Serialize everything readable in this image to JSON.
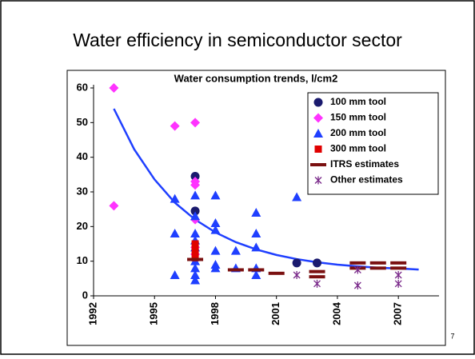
{
  "slide_title": "Water efficiency in semiconductor sector",
  "page_number": "7",
  "chart_data": {
    "type": "scatter",
    "title": "Water consumption trends, l/cm2",
    "xlim": [
      1992,
      2009
    ],
    "xticks": [
      1992,
      1995,
      1998,
      2001,
      2004,
      2007
    ],
    "ylim": [
      0,
      60
    ],
    "yticks": [
      0,
      10,
      20,
      30,
      40,
      50,
      60
    ],
    "legend": "upper right",
    "series": [
      {
        "name": "100 mm tool",
        "color": "#1a1a6e",
        "marker": "circle",
        "x": [
          1997,
          1997,
          2002,
          2003
        ],
        "values": [
          34.5,
          24.5,
          9.5,
          9.5
        ]
      },
      {
        "name": "150 mm tool",
        "color": "#ff33ff",
        "marker": "diamond",
        "x": [
          1993,
          1993,
          1996,
          1997,
          1997,
          1997,
          1997,
          1997,
          1997
        ],
        "values": [
          60,
          26,
          49,
          50,
          33,
          32,
          22,
          14,
          12
        ]
      },
      {
        "name": "200 mm tool",
        "color": "#1f3fff",
        "marker": "triangle",
        "x": [
          1996,
          1996,
          1996,
          1997,
          1997,
          1997,
          1997,
          1997,
          1997,
          1997,
          1997,
          1997,
          1998,
          1998,
          1998,
          1998,
          1998,
          1998,
          1999,
          1999,
          2000,
          2000,
          2000,
          2000,
          2000,
          2002
        ],
        "values": [
          28,
          18,
          6,
          29,
          23,
          18,
          16,
          14,
          10,
          8,
          6,
          4.5,
          29,
          21,
          19,
          13,
          9,
          8,
          13,
          8,
          24,
          18,
          14,
          8,
          6,
          28.5
        ]
      },
      {
        "name": "300 mm tool",
        "color": "#e00000",
        "marker": "square",
        "x": [
          1997,
          1997,
          1997
        ],
        "values": [
          11,
          15,
          13
        ]
      },
      {
        "name": "ITRS estimates",
        "color": "#7a1010",
        "marker": "dash",
        "x": [
          1997,
          1999,
          2000,
          2001,
          2003,
          2003,
          2005,
          2005,
          2006,
          2006,
          2007,
          2007
        ],
        "values": [
          10.5,
          7.5,
          7.5,
          6.5,
          7,
          5.5,
          9.5,
          8,
          9.5,
          8,
          9.5,
          8
        ]
      },
      {
        "name": "Other estimates",
        "color": "#7a2a8a",
        "marker": "asterisk",
        "x": [
          2002,
          2003,
          2005,
          2005,
          2007,
          2007
        ],
        "values": [
          6,
          3.5,
          3,
          7.5,
          6,
          3.5
        ]
      }
    ],
    "trend": {
      "color": "#1f3fff",
      "x": [
        1993,
        1994,
        1995,
        1996,
        1997,
        1998,
        1999,
        2000,
        2001,
        2002,
        2003,
        2004,
        2005,
        2006,
        2007,
        2008
      ],
      "values": [
        54,
        42.3,
        33.6,
        26.9,
        22,
        18.3,
        15.5,
        13.4,
        11.8,
        10.6,
        9.7,
        9,
        8.5,
        8.1,
        7.9,
        7.6
      ]
    }
  }
}
